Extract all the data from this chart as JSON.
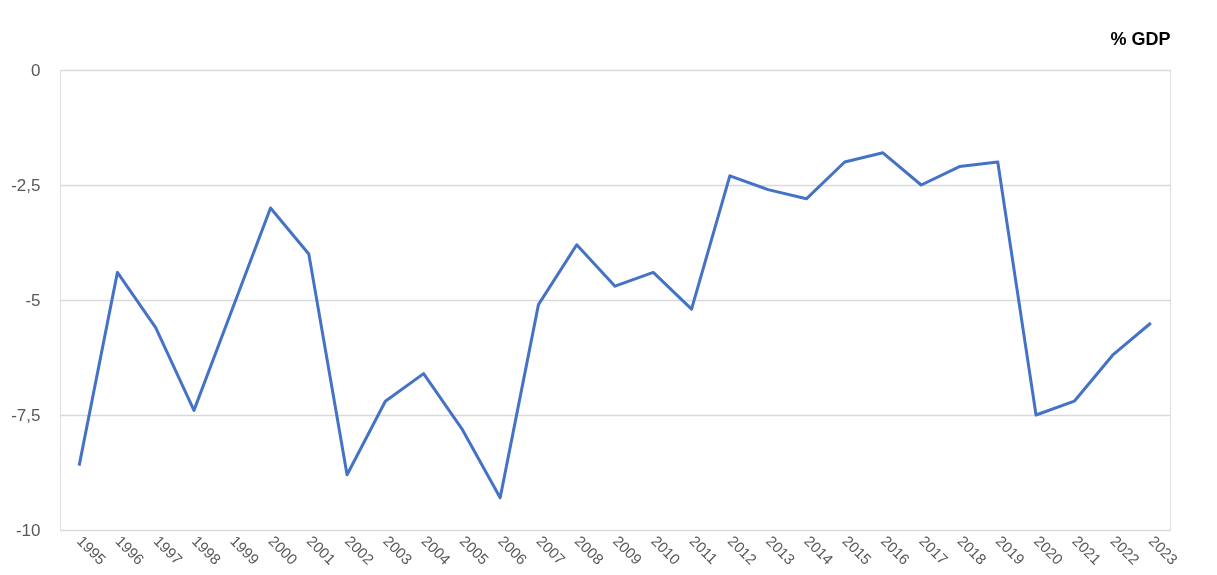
{
  "chart_data": {
    "type": "line",
    "ylabel": "% GDP",
    "categories": [
      "1995",
      "1996",
      "1997",
      "1998",
      "1999",
      "2000",
      "2001",
      "2002",
      "2003",
      "2004",
      "2005",
      "2006",
      "2007",
      "2008",
      "2009",
      "2010",
      "2011",
      "2012",
      "2013",
      "2014",
      "2015",
      "2016",
      "2017",
      "2018",
      "2019",
      "2020",
      "2021",
      "2022",
      "2023"
    ],
    "series": [
      {
        "color": "#4472c4",
        "values": [
          -8.6,
          -4.4,
          -5.6,
          -7.4,
          -5.2,
          -3.0,
          -4.0,
          -8.8,
          -7.2,
          -6.6,
          -7.8,
          -9.3,
          -5.1,
          -3.8,
          -4.7,
          -4.4,
          -5.2,
          -2.3,
          -2.6,
          -2.8,
          -2.0,
          -1.8,
          -2.5,
          -2.1,
          -2.0,
          -7.5,
          -7.2,
          -6.2,
          -5.5
        ]
      }
    ],
    "ylim": [
      -10,
      0
    ],
    "yticks": [
      0,
      {
        "value": -2.5,
        "label": "-2,5"
      },
      -5,
      {
        "value": -7.5,
        "label": "-7,5"
      },
      -10
    ],
    "grid": "y",
    "marker": "none",
    "line_style": "solid"
  }
}
